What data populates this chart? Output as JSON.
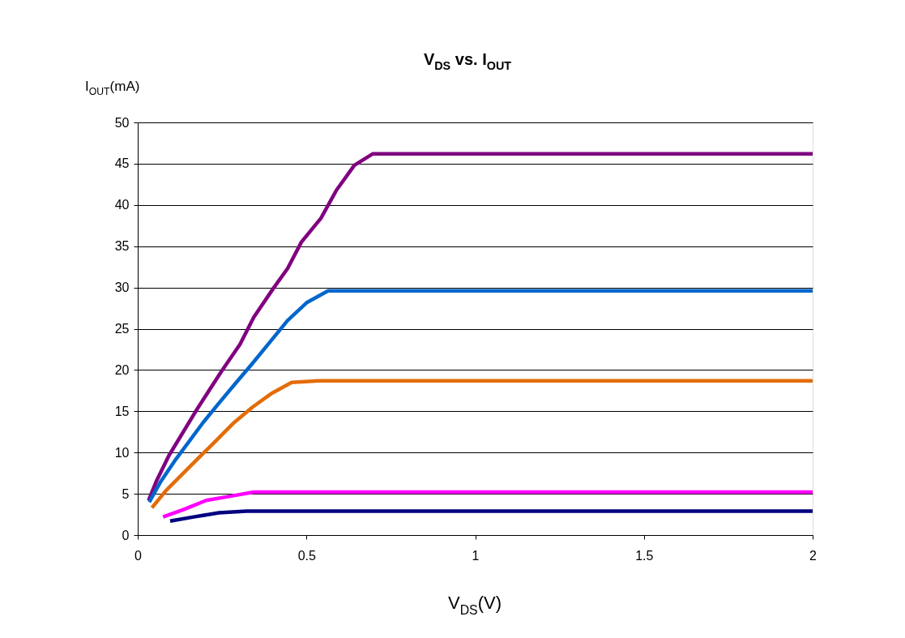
{
  "chart_data": {
    "type": "line",
    "title": "V$_{DS}$ vs. I$_{OUT}$",
    "xlabel": "V$_{DS}$(V)",
    "ylabel": "I$_{OUT}$(mA)",
    "xlim": [
      0,
      2
    ],
    "xticks": [
      0,
      0.5,
      1,
      1.5,
      2
    ],
    "ylim": [
      0,
      50
    ],
    "yticks": [
      0,
      5,
      10,
      15,
      20,
      25,
      30,
      35,
      40,
      45,
      50
    ],
    "grid": "y",
    "marker": "none",
    "line_style": "solid",
    "series": [
      {
        "color": "#800080",
        "x": [
          0.032,
          0.055,
          0.092,
          0.175,
          0.249,
          0.303,
          0.344,
          0.402,
          0.444,
          0.485,
          0.543,
          0.589,
          0.642,
          0.697,
          2
        ],
        "values": [
          4.2,
          6.5,
          9.6,
          15.2,
          19.9,
          23.1,
          26.4,
          29.9,
          32.3,
          35.5,
          38.4,
          41.8,
          44.8,
          46.2,
          46.2
        ]
      },
      {
        "color": "#0066cc",
        "x": [
          0.034,
          0.067,
          0.108,
          0.195,
          0.241,
          0.29,
          0.34,
          0.386,
          0.444,
          0.502,
          0.564,
          2
        ],
        "values": [
          4.0,
          6.4,
          8.9,
          13.7,
          16.0,
          18.4,
          20.8,
          23.1,
          26.0,
          28.2,
          29.6,
          29.6
        ]
      },
      {
        "color": "#e36c09",
        "x": [
          0.042,
          0.084,
          0.179,
          0.229,
          0.282,
          0.34,
          0.398,
          0.456,
          0.535,
          2
        ],
        "values": [
          3.3,
          5.4,
          9.3,
          11.3,
          13.5,
          15.5,
          17.2,
          18.5,
          18.7,
          18.7
        ]
      },
      {
        "color": "#ff00ff",
        "x": [
          0.075,
          0.137,
          0.203,
          0.274,
          0.344,
          2
        ],
        "values": [
          2.2,
          3.1,
          4.2,
          4.7,
          5.2,
          5.2
        ]
      },
      {
        "color": "#000080",
        "x": [
          0.096,
          0.166,
          0.241,
          0.323,
          2
        ],
        "values": [
          1.7,
          2.2,
          2.7,
          2.9,
          2.9
        ]
      }
    ]
  }
}
